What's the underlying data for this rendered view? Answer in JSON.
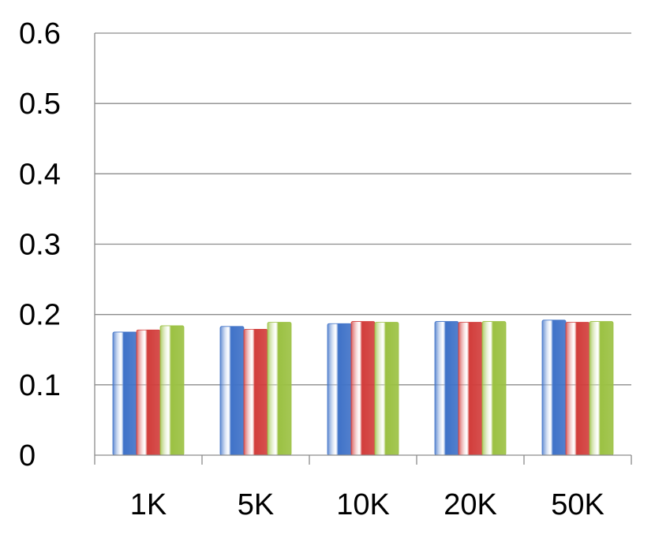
{
  "chart_data": {
    "type": "bar",
    "categories": [
      "1K",
      "5K",
      "10K",
      "20K",
      "50K"
    ],
    "series": [
      {
        "values": [
          0.175,
          0.183,
          0.187,
          0.19,
          0.192
        ],
        "color": "#3f72c8"
      },
      {
        "values": [
          0.178,
          0.179,
          0.19,
          0.189,
          0.189
        ],
        "color": "#d23d3b"
      },
      {
        "values": [
          0.184,
          0.189,
          0.189,
          0.19,
          0.19
        ],
        "color": "#9bc142"
      }
    ],
    "yticks": [
      "0",
      "0.1",
      "0.2",
      "0.3",
      "0.4",
      "0.5",
      "0.6"
    ],
    "ylim": [
      0,
      0.6
    ],
    "grid": true,
    "title": "",
    "xlabel": "",
    "ylabel": ""
  }
}
